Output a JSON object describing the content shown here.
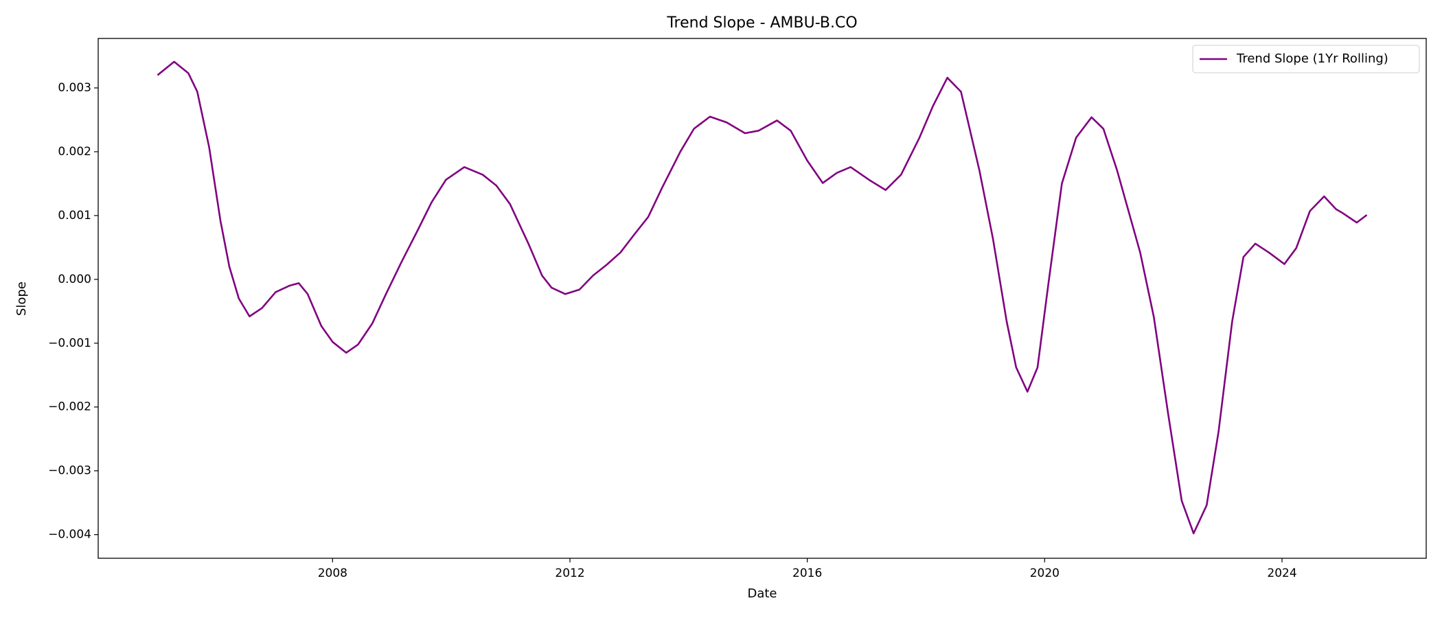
{
  "chart_data": {
    "type": "line",
    "title": "Trend Slope - AMBU-B.CO",
    "xlabel": "Date",
    "ylabel": "Slope",
    "x": [
      2005.05,
      2005.33,
      2005.57,
      2005.72,
      2005.92,
      2006.11,
      2006.26,
      2006.42,
      2006.6,
      2006.81,
      2007.04,
      2007.27,
      2007.43,
      2007.58,
      2007.81,
      2008.0,
      2008.23,
      2008.43,
      2008.67,
      2008.9,
      2009.16,
      2009.44,
      2009.67,
      2009.91,
      2010.22,
      2010.53,
      2010.76,
      2010.99,
      2011.3,
      2011.53,
      2011.69,
      2011.92,
      2012.16,
      2012.39,
      2012.62,
      2012.85,
      2013.09,
      2013.32,
      2013.55,
      2013.86,
      2014.09,
      2014.36,
      2014.64,
      2014.95,
      2015.18,
      2015.49,
      2015.72,
      2016.0,
      2016.26,
      2016.5,
      2016.73,
      2017.04,
      2017.32,
      2017.58,
      2017.89,
      2018.12,
      2018.36,
      2018.59,
      2018.9,
      2019.13,
      2019.36,
      2019.52,
      2019.71,
      2019.88,
      2020.06,
      2020.29,
      2020.53,
      2020.79,
      2020.99,
      2021.22,
      2021.61,
      2021.84,
      2022.08,
      2022.31,
      2022.51,
      2022.73,
      2022.93,
      2023.16,
      2023.35,
      2023.55,
      2023.78,
      2024.04,
      2024.24,
      2024.47,
      2024.71,
      2024.91,
      2025.02,
      2025.26,
      2025.43
    ],
    "series": [
      {
        "name": "Trend Slope (1Yr Rolling)",
        "color": "#800080",
        "values": [
          0.0032,
          0.00341,
          0.00323,
          0.00294,
          0.00207,
          0.00092,
          0.0002,
          -0.0003,
          -0.00058,
          -0.00045,
          -0.0002,
          -0.0001,
          -6e-05,
          -0.00023,
          -0.00073,
          -0.00098,
          -0.00115,
          -0.00102,
          -0.00069,
          -0.00023,
          0.00027,
          0.00078,
          0.00121,
          0.00156,
          0.00176,
          0.00164,
          0.00147,
          0.00118,
          0.00056,
          6e-05,
          -0.00013,
          -0.00023,
          -0.00016,
          6e-05,
          0.00023,
          0.00042,
          0.00071,
          0.00098,
          0.00143,
          0.002,
          0.00236,
          0.00255,
          0.00246,
          0.00229,
          0.00233,
          0.00249,
          0.00233,
          0.00186,
          0.00151,
          0.00167,
          0.00176,
          0.00156,
          0.0014,
          0.00164,
          0.00222,
          0.00272,
          0.00316,
          0.00294,
          0.00171,
          0.00063,
          -0.00066,
          -0.00138,
          -0.00176,
          -0.00138,
          -9e-05,
          0.0015,
          0.00222,
          0.00254,
          0.00236,
          0.00171,
          0.00042,
          -0.00059,
          -0.0021,
          -0.00347,
          -0.00398,
          -0.00354,
          -0.00239,
          -0.00066,
          0.00035,
          0.00056,
          0.00042,
          0.00024,
          0.00049,
          0.00107,
          0.0013,
          0.0011,
          0.00104,
          0.00089,
          0.00101
        ]
      }
    ],
    "xlim": [
      2004.05,
      2026.43
    ],
    "xticks": [
      2008,
      2012,
      2016,
      2020,
      2024
    ],
    "ylim": [
      -0.00437,
      0.003775
    ],
    "yticks": [
      {
        "value": -0.004,
        "label": "−0.004"
      },
      {
        "value": -0.003,
        "label": "−0.003"
      },
      {
        "value": -0.002,
        "label": "−0.002"
      },
      {
        "value": -0.001,
        "label": "−0.001"
      },
      {
        "value": 0,
        "label": "0.000"
      },
      0.001,
      0.002,
      0.003
    ],
    "legend": "upper right",
    "grid": false
  }
}
